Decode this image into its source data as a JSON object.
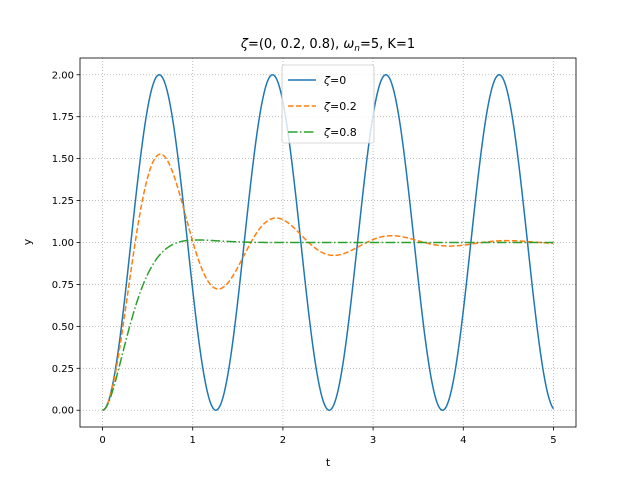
{
  "chart_data": {
    "type": "line",
    "title": "ζ=(0, 0.2, 0.8), ωn=5, K=1",
    "title_parts": {
      "zeta_sym": "ζ",
      "zeta_vals": "=(0, 0.2, 0.8), ",
      "omega_sym": "ω",
      "omega_sub": "n",
      "rest": "=5, K=1"
    },
    "xlabel": "t",
    "ylabel": "y",
    "xlim": [
      -0.25,
      5.25
    ],
    "ylim": [
      -0.1,
      2.1
    ],
    "xticks": [
      0,
      1,
      2,
      3,
      4,
      5
    ],
    "xtick_labels": [
      "0",
      "1",
      "2",
      "3",
      "4",
      "5"
    ],
    "yticks": [
      0,
      0.25,
      0.5,
      0.75,
      1.0,
      1.25,
      1.5,
      1.75,
      2.0
    ],
    "ytick_labels": [
      "0.00",
      "0.25",
      "0.50",
      "0.75",
      "1.00",
      "1.25",
      "1.50",
      "1.75",
      "2.00"
    ],
    "grid": true,
    "legend_position": "top-center",
    "parameters": {
      "omega_n": 5,
      "K": 1,
      "t_range": [
        0,
        5
      ]
    },
    "series": [
      {
        "name": "ζ=0",
        "zeta_label": "ζ",
        "value_label": "=0",
        "zeta": 0,
        "color": "#1f77b4",
        "linestyle": "solid"
      },
      {
        "name": "ζ=0.2",
        "zeta_label": "ζ",
        "value_label": "=0.2",
        "zeta": 0.2,
        "color": "#ff7f0e",
        "linestyle": "dashed"
      },
      {
        "name": "ζ=0.8",
        "zeta_label": "ζ",
        "value_label": "=0.8",
        "zeta": 0.8,
        "color": "#2ca02c",
        "linestyle": "dashdot"
      }
    ]
  }
}
